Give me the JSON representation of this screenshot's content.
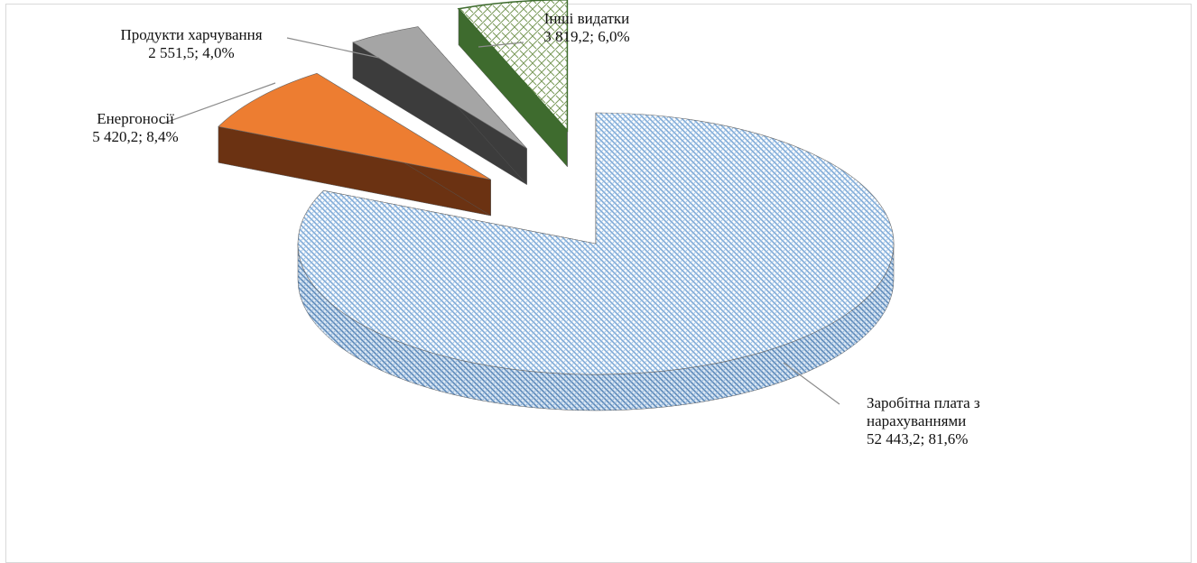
{
  "chart_data": {
    "type": "pie",
    "title": "",
    "slices": [
      {
        "name": "Заробітна плата з нарахуваннями",
        "value": 52443.2,
        "percent": 81.6,
        "label_lines": [
          "Заробітна плата з",
          "нарахуваннями",
          "52 443,2; 81,6%"
        ],
        "color": "#9dc3e6",
        "exploded": false
      },
      {
        "name": "Енергоносії",
        "value": 5420.2,
        "percent": 8.4,
        "label_lines": [
          "Енергоносії",
          "5 420,2; 8,4%"
        ],
        "color": "#ed7d31",
        "exploded": true
      },
      {
        "name": "Продукти харчування",
        "value": 2551.5,
        "percent": 4.0,
        "label_lines": [
          "Продукти харчування",
          "2 551,5; 4,0%"
        ],
        "color": "#a5a5a5",
        "exploded": true
      },
      {
        "name": "Інші видатки",
        "value": 3819.2,
        "percent": 6.0,
        "label_lines": [
          "Інші  видатки",
          "3 819,2; 6,0%"
        ],
        "color": "#e2efda",
        "exploded": true
      }
    ],
    "legend": "none",
    "style": "3d-exploded-pie"
  }
}
